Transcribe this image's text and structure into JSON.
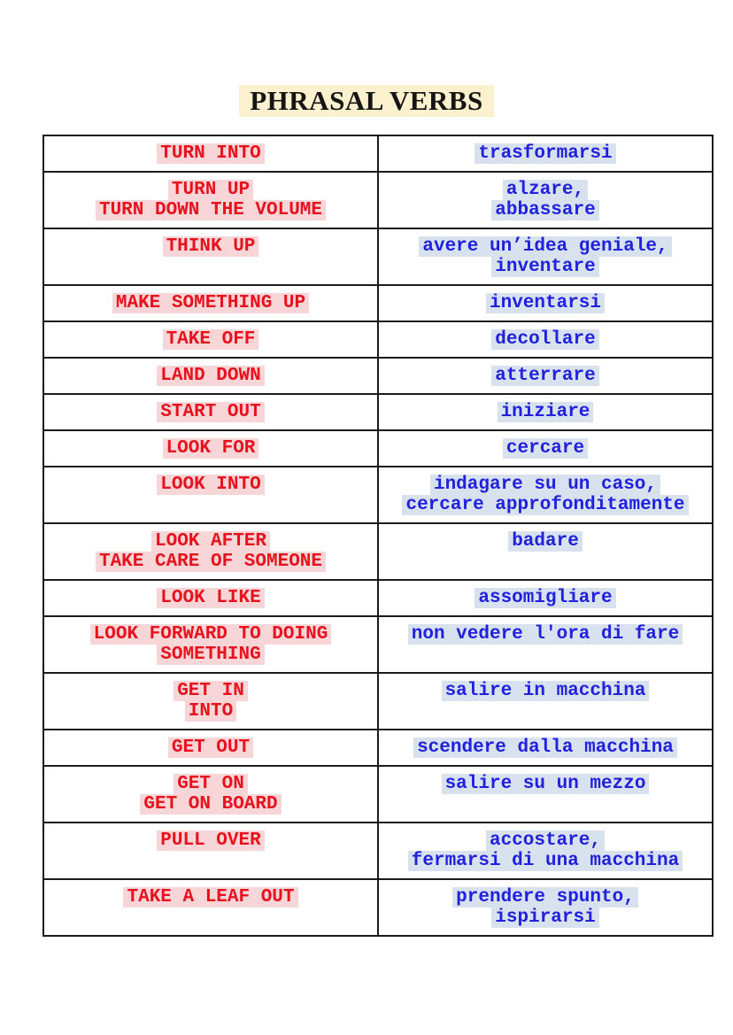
{
  "title": {
    "text": "PHRASAL VERBS"
  },
  "colors": {
    "english_text": "#e8121f",
    "english_highlight": "#f8d5d6",
    "italian_text": "#2121dd",
    "italian_highlight": "#d8e2ef",
    "title_highlight": "#fcf1cf",
    "table_border": "#1b1b1b"
  },
  "table": {
    "columns": [
      "english-phrasal-verb",
      "italian-translation"
    ],
    "rows": [
      {
        "en_lines": [
          "TURN INTO"
        ],
        "it_lines": [
          "trasformarsi"
        ]
      },
      {
        "en_lines": [
          "TURN UP",
          "TURN DOWN THE VOLUME"
        ],
        "it_lines": [
          "alzare,",
          "abbassare"
        ]
      },
      {
        "en_lines": [
          "THINK UP"
        ],
        "it_lines": [
          "avere un’idea geniale,",
          "inventare"
        ]
      },
      {
        "en_lines": [
          "MAKE SOMETHING UP"
        ],
        "it_lines": [
          "inventarsi"
        ]
      },
      {
        "en_lines": [
          "TAKE OFF"
        ],
        "it_lines": [
          "decollare"
        ]
      },
      {
        "en_lines": [
          "LAND DOWN"
        ],
        "it_lines": [
          "atterrare"
        ]
      },
      {
        "en_lines": [
          "START OUT"
        ],
        "it_lines": [
          "iniziare"
        ]
      },
      {
        "en_lines": [
          "LOOK FOR"
        ],
        "it_lines": [
          "cercare"
        ]
      },
      {
        "en_lines": [
          "LOOK INTO"
        ],
        "it_lines": [
          "indagare su un caso,",
          "cercare approfonditamente"
        ]
      },
      {
        "en_lines": [
          "LOOK AFTER",
          "TAKE CARE OF SOMEONE"
        ],
        "it_lines": [
          "badare"
        ]
      },
      {
        "en_lines": [
          "LOOK LIKE"
        ],
        "it_lines": [
          "assomigliare"
        ]
      },
      {
        "en_lines": [
          "LOOK FORWARD TO DOING",
          "SOMETHING"
        ],
        "it_lines": [
          "non vedere l'ora di fare"
        ]
      },
      {
        "en_lines": [
          "GET IN",
          "INTO"
        ],
        "it_lines": [
          "salire in macchina"
        ]
      },
      {
        "en_lines": [
          "GET OUT"
        ],
        "it_lines": [
          "scendere dalla macchina"
        ]
      },
      {
        "en_lines": [
          "GET ON",
          "GET ON BOARD"
        ],
        "it_lines": [
          "salire su un mezzo"
        ]
      },
      {
        "en_lines": [
          "PULL OVER"
        ],
        "it_lines": [
          "accostare,",
          "fermarsi di una macchina"
        ]
      },
      {
        "en_lines": [
          "TAKE A LEAF OUT"
        ],
        "it_lines": [
          "prendere spunto,",
          "ispirarsi"
        ]
      }
    ]
  }
}
